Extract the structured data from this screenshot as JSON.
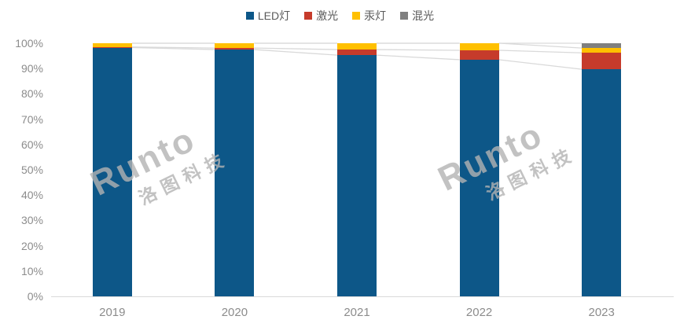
{
  "watermark": {
    "line1": "Runto",
    "line2": "洛图科技"
  },
  "chart_data": {
    "type": "bar",
    "subtype": "stacked-100-percent-column",
    "title": "",
    "xlabel": "",
    "ylabel": "",
    "categories": [
      "2019",
      "2020",
      "2021",
      "2022",
      "2023"
    ],
    "series": [
      {
        "name": "LED灯",
        "color": "#0d5788",
        "values": [
          98.3,
          97.5,
          95.3,
          93.5,
          89.7
        ]
      },
      {
        "name": "激光",
        "color": "#c63b2b",
        "values": [
          0.2,
          0.6,
          2.2,
          3.7,
          6.5
        ]
      },
      {
        "name": "汞灯",
        "color": "#ffc000",
        "values": [
          1.5,
          1.9,
          2.5,
          2.8,
          1.9
        ]
      },
      {
        "name": "混光",
        "color": "#808080",
        "values": [
          0.0,
          0.0,
          0.0,
          0.0,
          1.9
        ]
      }
    ],
    "ylim": [
      0,
      100
    ],
    "y_ticks": [
      "0%",
      "10%",
      "20%",
      "30%",
      "40%",
      "50%",
      "60%",
      "70%",
      "80%",
      "90%",
      "100%"
    ],
    "legend_position": "top",
    "gridlines": false,
    "series_connector_lines": true,
    "connector_line_color": "#d9d9d9",
    "axis_line_color": "#d9d9d9",
    "tick_label_color": "#8c8c8c",
    "legend_label_color": "#595959"
  }
}
